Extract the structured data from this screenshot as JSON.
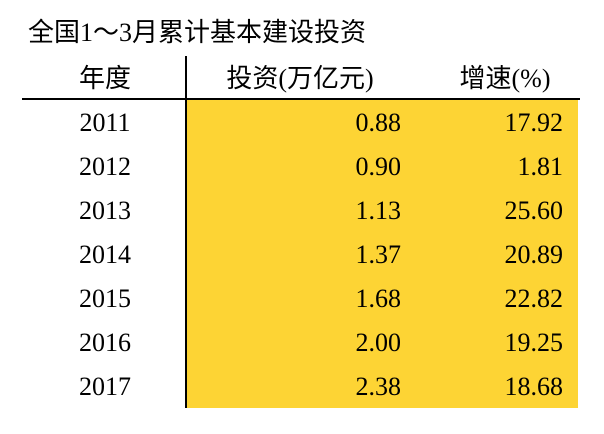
{
  "title": "全国1～3月累计基本建设投资",
  "table": {
    "header": [
      "年度",
      "投资(万亿元)",
      "增速(%)"
    ],
    "rows": [
      [
        "2011",
        "0.88",
        "17.92"
      ],
      [
        "2012",
        "0.90",
        "1.81"
      ],
      [
        "2013",
        "1.13",
        "25.60"
      ],
      [
        "2014",
        "1.37",
        "20.89"
      ],
      [
        "2015",
        "1.68",
        "22.82"
      ],
      [
        "2016",
        "2.00",
        "19.25"
      ],
      [
        "2017",
        "2.38",
        "18.68"
      ]
    ]
  }
}
